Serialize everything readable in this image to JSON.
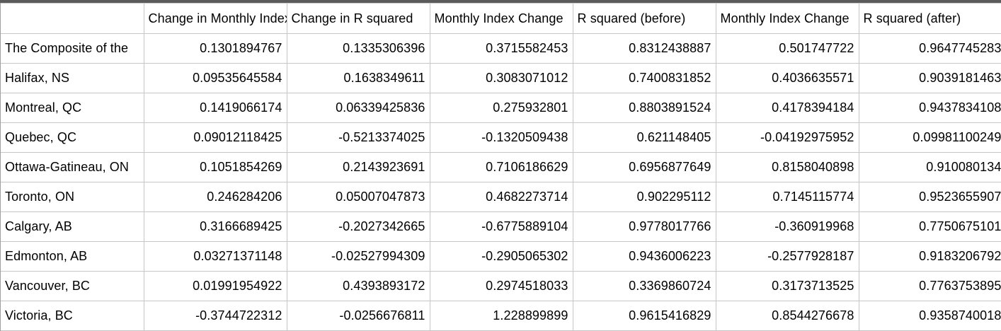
{
  "headers": [
    "",
    "Change in Monthly Index",
    "Change in R squared",
    "Monthly Index Change",
    "R squared (before)",
    "Monthly Index Change",
    "R squared (after)"
  ],
  "rows": [
    [
      "The Composite of the",
      "0.1301894767",
      "0.1335306396",
      "0.3715582453",
      "0.8312438887",
      "0.501747722",
      "0.9647745283"
    ],
    [
      "Halifax, NS",
      "0.09535645584",
      "0.1638349611",
      "0.3083071012",
      "0.7400831852",
      "0.4036635571",
      "0.9039181463"
    ],
    [
      "Montreal, QC",
      "0.1419066174",
      "0.06339425836",
      "0.275932801",
      "0.8803891524",
      "0.4178394184",
      "0.9437834108"
    ],
    [
      "Quebec, QC",
      "0.09012118425",
      "-0.5213374025",
      "-0.1320509438",
      "0.621148405",
      "-0.04192975952",
      "0.09981100249"
    ],
    [
      "Ottawa-Gatineau, ON",
      "0.1051854269",
      "0.2143923691",
      "0.7106186629",
      "0.6956877649",
      "0.8158040898",
      "0.910080134"
    ],
    [
      "Toronto, ON",
      "0.246284206",
      "0.05007047873",
      "0.4682273714",
      "0.902295112",
      "0.7145115774",
      "0.9523655907"
    ],
    [
      "Calgary, AB",
      "0.3166689425",
      "-0.2027342665",
      "-0.6775889104",
      "0.9778017766",
      "-0.360919968",
      "0.7750675101"
    ],
    [
      "Edmonton, AB",
      "0.03271371148",
      "-0.02527994309",
      "-0.2905065302",
      "0.9436006223",
      "-0.2577928187",
      "0.9183206792"
    ],
    [
      "Vancouver, BC",
      "0.01991954922",
      "0.4393893172",
      "0.2974518033",
      "0.3369860724",
      "0.3173713525",
      "0.7763753895"
    ],
    [
      "Victoria, BC",
      "-0.3744722312",
      "-0.0256676811",
      "1.228899899",
      "0.9615416829",
      "0.8544276678",
      "0.9358740018"
    ]
  ]
}
